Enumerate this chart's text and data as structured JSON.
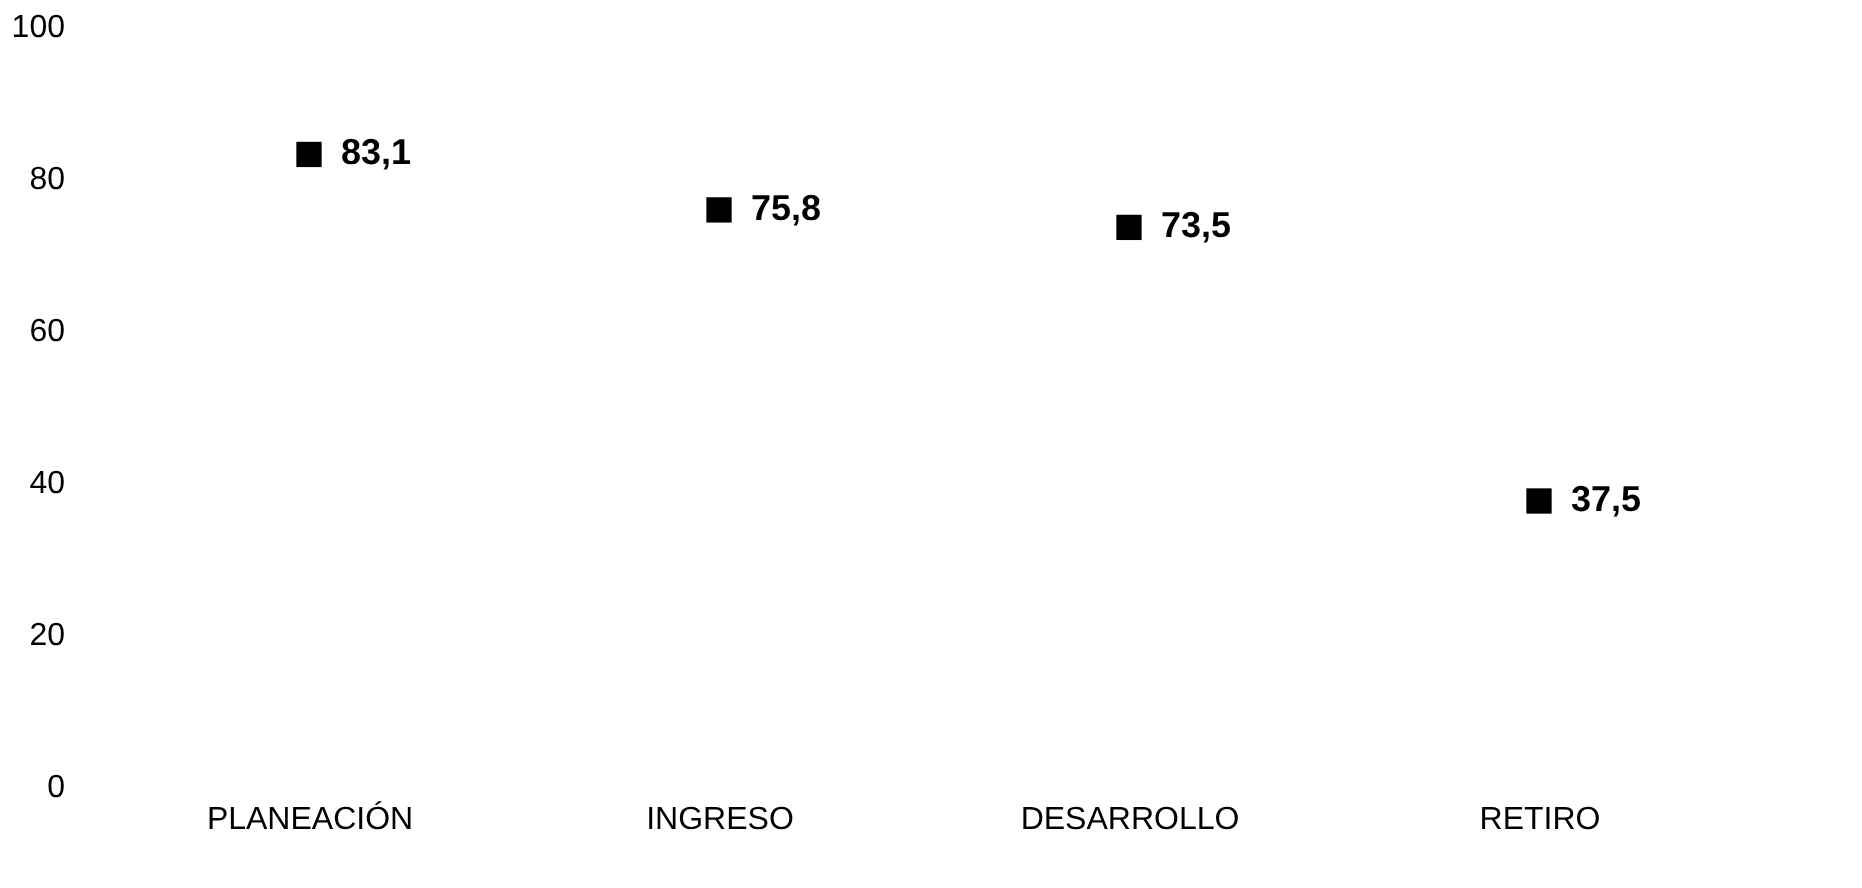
{
  "chart_data": {
    "type": "scatter",
    "categories": [
      "PLANEACIÓN",
      "INGRESO",
      "DESARROLLO",
      "RETIRO"
    ],
    "series": [
      {
        "color": "#000000",
        "values": [
          83.1,
          75.8,
          73.5,
          37.5
        ],
        "value_labels": [
          "83,1",
          "75,8",
          "73,5",
          "37,5"
        ]
      }
    ],
    "ylim": [
      0,
      100
    ],
    "yticks": [
      0,
      20,
      40,
      60,
      80,
      100
    ],
    "marker": "square"
  }
}
